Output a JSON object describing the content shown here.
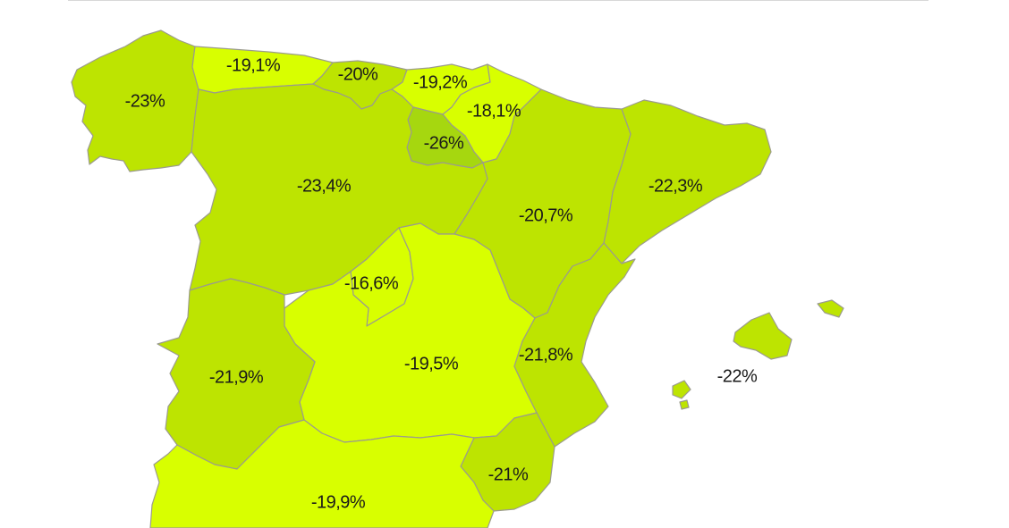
{
  "map": {
    "colors": {
      "darker": "#a6d70f",
      "dark": "#bde401",
      "light": "#d8ff00",
      "border": "#9b9b8e"
    },
    "regions": [
      {
        "id": "galicia",
        "label": "-23%",
        "color": "#bde401"
      },
      {
        "id": "asturias",
        "label": "-19,1%",
        "color": "#d8ff00"
      },
      {
        "id": "cantabria",
        "label": "-20%",
        "color": "#bde401"
      },
      {
        "id": "pais-vasco",
        "label": "-19,2%",
        "color": "#d8ff00"
      },
      {
        "id": "navarra",
        "label": "-18,1%",
        "color": "#d8ff00"
      },
      {
        "id": "la-rioja",
        "label": "-26%",
        "color": "#a6d70f"
      },
      {
        "id": "castilla-y-leon",
        "label": "-23,4%",
        "color": "#bde401"
      },
      {
        "id": "aragon",
        "label": "-20,7%",
        "color": "#bde401"
      },
      {
        "id": "cataluna",
        "label": "-22,3%",
        "color": "#bde401"
      },
      {
        "id": "madrid",
        "label": "-16,6%",
        "color": "#d8ff00"
      },
      {
        "id": "castilla-la-mancha",
        "label": "-19,5%",
        "color": "#d8ff00"
      },
      {
        "id": "comunidad-valenciana",
        "label": "-21,8%",
        "color": "#bde401"
      },
      {
        "id": "extremadura",
        "label": "-21,9%",
        "color": "#bde401"
      },
      {
        "id": "murcia",
        "label": "-21%",
        "color": "#bde401"
      },
      {
        "id": "andalucia",
        "label": "-19,9%",
        "color": "#d8ff00"
      },
      {
        "id": "baleares",
        "label": "-22%",
        "color": "#bde401"
      }
    ]
  }
}
